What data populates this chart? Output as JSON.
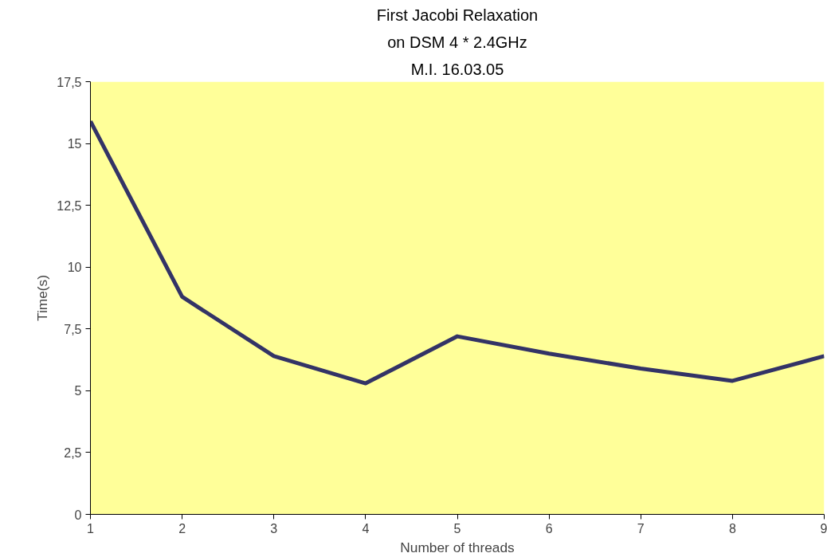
{
  "chart_data": {
    "type": "line",
    "title": "First Jacobi Relaxation",
    "subtitle": "on DSM 4 * 2.4GHz",
    "annotations": [
      "M.I. 16.03.05"
    ],
    "xlabel": "Number of threads",
    "ylabel": "Time(s)",
    "x": [
      1,
      2,
      3,
      4,
      5,
      6,
      7,
      8,
      9
    ],
    "series": [
      {
        "color": "#333366",
        "values": [
          15.9,
          8.8,
          6.4,
          5.3,
          7.2,
          6.5,
          5.9,
          5.4,
          6.4
        ]
      }
    ],
    "xlim": [
      1,
      9
    ],
    "xticks": [
      1,
      2,
      3,
      4,
      5,
      6,
      7,
      8,
      9
    ],
    "ylim": [
      0,
      17.5
    ],
    "yticks": [
      0,
      {
        "value": 2.5,
        "label": "2,5"
      },
      5,
      {
        "value": 7.5,
        "label": "7,5"
      },
      10,
      {
        "value": 12.5,
        "label": "12,5"
      },
      15,
      {
        "value": 17.5,
        "label": "17,5"
      }
    ],
    "marker": "none",
    "line_style": "solid"
  }
}
